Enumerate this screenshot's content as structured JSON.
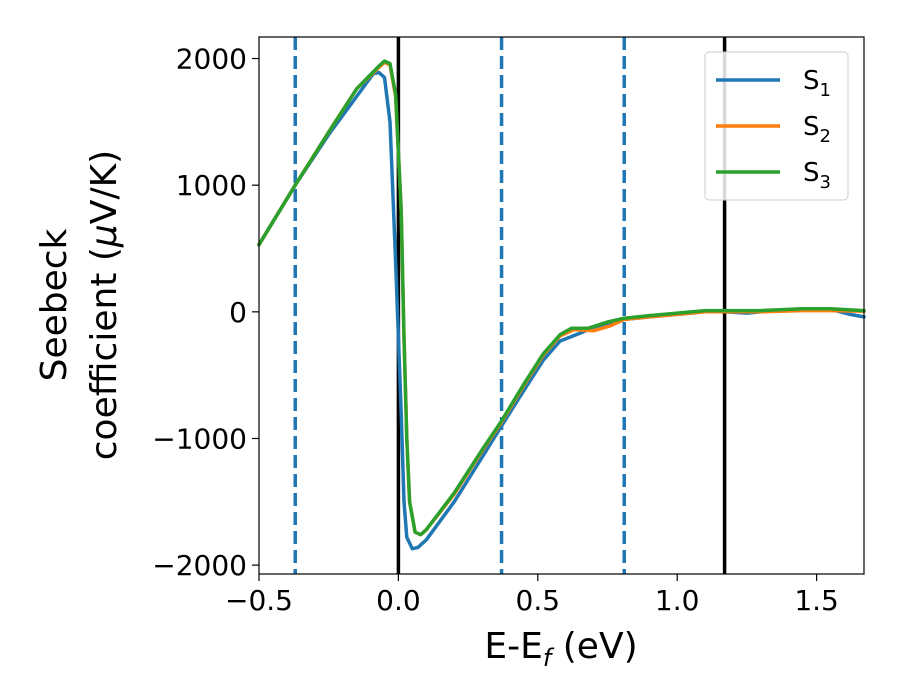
{
  "chart_data": {
    "type": "line",
    "xlabel": {
      "base": "E-E",
      "sub": "f",
      "suffix": " (eV)"
    },
    "ylabel": {
      "line1": "Seebeck",
      "line2_pre": "coefficient  (",
      "mu": "μ",
      "line2_post": "V/K)"
    },
    "xlim": [
      -0.5,
      1.67
    ],
    "ylim": [
      -2070,
      2170
    ],
    "xticks": [
      {
        "value": -0.5,
        "label": "−0.5"
      },
      {
        "value": 0.0,
        "label": "0.0"
      },
      {
        "value": 0.5,
        "label": "0.5"
      },
      {
        "value": 1.0,
        "label": "1.0"
      },
      {
        "value": 1.5,
        "label": "1.5"
      }
    ],
    "yticks": [
      {
        "value": -2000,
        "label": "−2000"
      },
      {
        "value": -1000,
        "label": "−1000"
      },
      {
        "value": 0,
        "label": "0"
      },
      {
        "value": 1000,
        "label": "1000"
      },
      {
        "value": 2000,
        "label": "2000"
      }
    ],
    "grid": false,
    "legend_position": "top-right",
    "vlines": [
      {
        "x": -0.37,
        "style": "dashed",
        "color": "#1f77b4"
      },
      {
        "x": 0.0,
        "style": "solid",
        "color": "#000000"
      },
      {
        "x": 0.37,
        "style": "dashed",
        "color": "#1f77b4"
      },
      {
        "x": 0.81,
        "style": "dashed",
        "color": "#1f77b4"
      },
      {
        "x": 1.17,
        "style": "solid",
        "color": "#000000"
      }
    ],
    "series": [
      {
        "name": {
          "base": "S",
          "sub": "1"
        },
        "color": "#1f77b4",
        "points": [
          [
            -0.5,
            530
          ],
          [
            -0.37,
            1000
          ],
          [
            -0.25,
            1400
          ],
          [
            -0.15,
            1700
          ],
          [
            -0.09,
            1880
          ],
          [
            -0.07,
            1890
          ],
          [
            -0.05,
            1850
          ],
          [
            -0.03,
            1500
          ],
          [
            -0.01,
            400
          ],
          [
            0.01,
            -800
          ],
          [
            0.02,
            -1500
          ],
          [
            0.03,
            -1780
          ],
          [
            0.05,
            -1870
          ],
          [
            0.07,
            -1860
          ],
          [
            0.1,
            -1800
          ],
          [
            0.2,
            -1500
          ],
          [
            0.3,
            -1150
          ],
          [
            0.37,
            -900
          ],
          [
            0.45,
            -620
          ],
          [
            0.52,
            -380
          ],
          [
            0.58,
            -230
          ],
          [
            0.65,
            -170
          ],
          [
            0.7,
            -120
          ],
          [
            0.81,
            -60
          ],
          [
            0.9,
            -40
          ],
          [
            1.0,
            -20
          ],
          [
            1.1,
            0
          ],
          [
            1.17,
            0
          ],
          [
            1.25,
            -10
          ],
          [
            1.35,
            10
          ],
          [
            1.45,
            20
          ],
          [
            1.55,
            20
          ],
          [
            1.62,
            -20
          ],
          [
            1.67,
            -40
          ]
        ]
      },
      {
        "name": {
          "base": "S",
          "sub": "2"
        },
        "color": "#ff7f0e",
        "points": [
          [
            -0.5,
            530
          ],
          [
            -0.37,
            1000
          ],
          [
            -0.25,
            1420
          ],
          [
            -0.15,
            1760
          ],
          [
            -0.07,
            1930
          ],
          [
            -0.05,
            1970
          ],
          [
            -0.03,
            1950
          ],
          [
            -0.01,
            1700
          ],
          [
            0.01,
            800
          ],
          [
            0.02,
            -200
          ],
          [
            0.03,
            -1000
          ],
          [
            0.04,
            -1500
          ],
          [
            0.06,
            -1740
          ],
          [
            0.08,
            -1760
          ],
          [
            0.1,
            -1720
          ],
          [
            0.2,
            -1440
          ],
          [
            0.3,
            -1100
          ],
          [
            0.37,
            -870
          ],
          [
            0.45,
            -580
          ],
          [
            0.52,
            -340
          ],
          [
            0.58,
            -190
          ],
          [
            0.63,
            -140
          ],
          [
            0.7,
            -150
          ],
          [
            0.76,
            -110
          ],
          [
            0.81,
            -60
          ],
          [
            0.9,
            -40
          ],
          [
            1.0,
            -20
          ],
          [
            1.1,
            0
          ],
          [
            1.17,
            0
          ],
          [
            1.3,
            0
          ],
          [
            1.45,
            10
          ],
          [
            1.55,
            10
          ],
          [
            1.67,
            5
          ]
        ]
      },
      {
        "name": {
          "base": "S",
          "sub": "3"
        },
        "color": "#2ca02c",
        "points": [
          [
            -0.5,
            530
          ],
          [
            -0.37,
            1000
          ],
          [
            -0.25,
            1420
          ],
          [
            -0.15,
            1760
          ],
          [
            -0.07,
            1940
          ],
          [
            -0.05,
            1980
          ],
          [
            -0.03,
            1960
          ],
          [
            -0.01,
            1720
          ],
          [
            0.01,
            800
          ],
          [
            0.02,
            -200
          ],
          [
            0.03,
            -1000
          ],
          [
            0.04,
            -1500
          ],
          [
            0.06,
            -1740
          ],
          [
            0.08,
            -1760
          ],
          [
            0.1,
            -1720
          ],
          [
            0.2,
            -1430
          ],
          [
            0.3,
            -1090
          ],
          [
            0.37,
            -860
          ],
          [
            0.45,
            -570
          ],
          [
            0.52,
            -330
          ],
          [
            0.58,
            -180
          ],
          [
            0.62,
            -130
          ],
          [
            0.68,
            -130
          ],
          [
            0.75,
            -80
          ],
          [
            0.81,
            -50
          ],
          [
            0.9,
            -30
          ],
          [
            1.0,
            -10
          ],
          [
            1.1,
            10
          ],
          [
            1.17,
            10
          ],
          [
            1.3,
            10
          ],
          [
            1.45,
            25
          ],
          [
            1.55,
            25
          ],
          [
            1.67,
            10
          ]
        ]
      }
    ]
  }
}
